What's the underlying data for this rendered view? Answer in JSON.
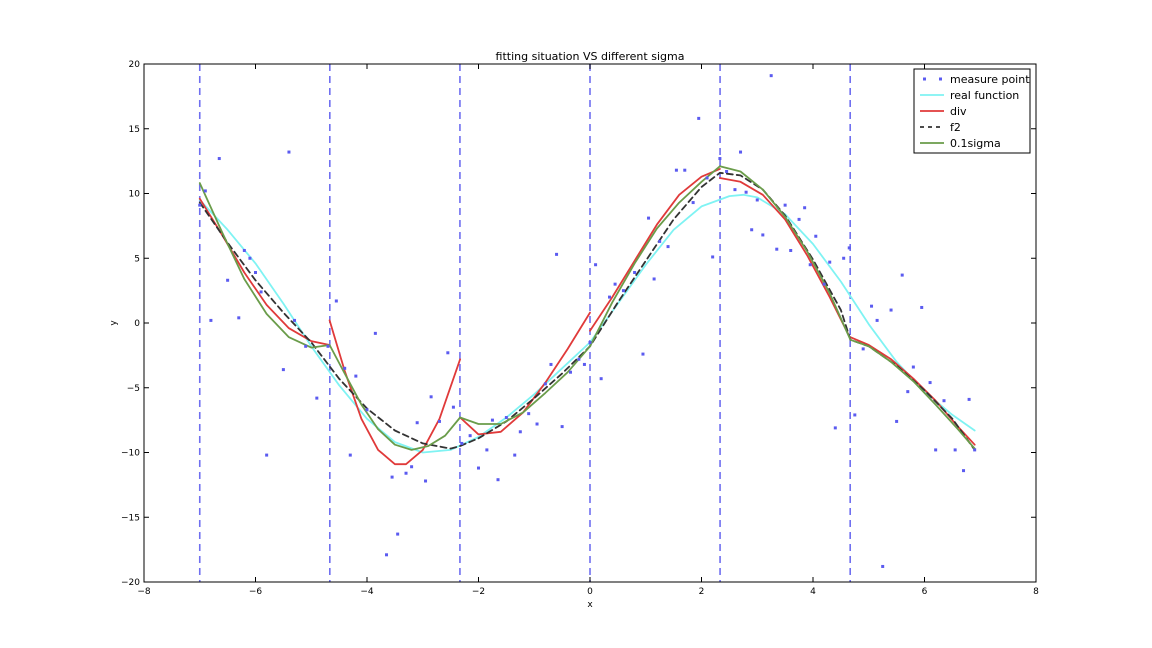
{
  "chart_data": {
    "type": "line",
    "title": "fitting situation VS different sigma",
    "xlabel": "x",
    "ylabel": "y",
    "xlim": [
      -8,
      8
    ],
    "ylim": [
      -20,
      20
    ],
    "x_ticks": [
      -8,
      -6,
      -4,
      -2,
      0,
      2,
      4,
      6,
      8
    ],
    "y_ticks": [
      -20,
      -15,
      -10,
      -5,
      0,
      5,
      10,
      15,
      20
    ],
    "x_tick_labels": [
      "−8",
      "−6",
      "−4",
      "−2",
      "0",
      "2",
      "4",
      "6",
      "8"
    ],
    "y_tick_labels": [
      "−20",
      "−15",
      "−10",
      "−5",
      "0",
      "5",
      "10",
      "15",
      "20"
    ],
    "grid": false,
    "legend_position": "top-right",
    "vertical_lines": {
      "x": [
        -7,
        -4.667,
        -2.333,
        0,
        2.333,
        4.667
      ],
      "color": "#6f6ff0",
      "style": "dashed"
    },
    "series": [
      {
        "name": "measure point",
        "kind": "scatter",
        "color": "#5b5bf0",
        "points": [
          [
            -7.0,
            9.1
          ],
          [
            -6.9,
            10.2
          ],
          [
            -6.8,
            0.2
          ],
          [
            -6.65,
            12.7
          ],
          [
            -6.5,
            3.3
          ],
          [
            -6.3,
            0.4
          ],
          [
            -6.2,
            5.6
          ],
          [
            -6.1,
            5.0
          ],
          [
            -6.0,
            3.9
          ],
          [
            -5.9,
            2.4
          ],
          [
            -5.8,
            -10.2
          ],
          [
            -5.5,
            -3.6
          ],
          [
            -5.4,
            13.2
          ],
          [
            -5.3,
            0.2
          ],
          [
            -5.1,
            -1.8
          ],
          [
            -4.9,
            -5.8
          ],
          [
            -4.7,
            -1.8
          ],
          [
            -4.55,
            1.7
          ],
          [
            -4.4,
            -3.5
          ],
          [
            -4.3,
            -10.2
          ],
          [
            -4.2,
            -4.1
          ],
          [
            -4.0,
            -6.7
          ],
          [
            -3.85,
            -0.8
          ],
          [
            -3.65,
            -17.9
          ],
          [
            -3.55,
            -11.9
          ],
          [
            -3.45,
            -16.3
          ],
          [
            -3.3,
            -11.6
          ],
          [
            -3.2,
            -11.1
          ],
          [
            -3.1,
            -7.7
          ],
          [
            -2.95,
            -12.2
          ],
          [
            -2.85,
            -5.7
          ],
          [
            -2.7,
            -7.6
          ],
          [
            -2.55,
            -2.3
          ],
          [
            -2.45,
            -6.5
          ],
          [
            -2.3,
            -9.3
          ],
          [
            -2.15,
            -8.7
          ],
          [
            -2.0,
            -11.2
          ],
          [
            -1.85,
            -9.8
          ],
          [
            -1.75,
            -7.5
          ],
          [
            -1.65,
            -12.1
          ],
          [
            -1.5,
            -7.3
          ],
          [
            -1.35,
            -10.2
          ],
          [
            -1.25,
            -8.4
          ],
          [
            -1.1,
            -7.0
          ],
          [
            -0.95,
            -7.8
          ],
          [
            -0.8,
            -4.7
          ],
          [
            -0.7,
            -3.2
          ],
          [
            -0.6,
            5.3
          ],
          [
            -0.5,
            -8.0
          ],
          [
            -0.35,
            -3.8
          ],
          [
            -0.2,
            -2.8
          ],
          [
            -0.1,
            -3.2
          ],
          [
            0.0,
            -1.5
          ],
          [
            0.1,
            4.5
          ],
          [
            0.2,
            -4.3
          ],
          [
            0.35,
            2.0
          ],
          [
            0.45,
            3.0
          ],
          [
            0.6,
            2.5
          ],
          [
            0.8,
            3.9
          ],
          [
            0.95,
            -2.4
          ],
          [
            1.05,
            8.1
          ],
          [
            1.15,
            3.4
          ],
          [
            1.25,
            6.3
          ],
          [
            1.4,
            5.9
          ],
          [
            1.55,
            11.8
          ],
          [
            1.7,
            11.8
          ],
          [
            1.85,
            9.3
          ],
          [
            1.95,
            15.8
          ],
          [
            2.1,
            11.2
          ],
          [
            2.2,
            5.1
          ],
          [
            2.33,
            12.7
          ],
          [
            2.45,
            11.7
          ],
          [
            2.6,
            10.3
          ],
          [
            2.7,
            13.2
          ],
          [
            2.8,
            10.1
          ],
          [
            2.9,
            7.2
          ],
          [
            3.0,
            9.5
          ],
          [
            3.1,
            6.8
          ],
          [
            3.25,
            19.1
          ],
          [
            3.35,
            5.7
          ],
          [
            3.5,
            9.1
          ],
          [
            3.6,
            5.6
          ],
          [
            3.75,
            8.0
          ],
          [
            3.85,
            8.9
          ],
          [
            3.95,
            4.5
          ],
          [
            4.05,
            6.7
          ],
          [
            4.2,
            3.0
          ],
          [
            4.3,
            4.7
          ],
          [
            4.4,
            -8.1
          ],
          [
            4.55,
            5.0
          ],
          [
            4.65,
            5.8
          ],
          [
            4.75,
            -7.1
          ],
          [
            4.9,
            -2.0
          ],
          [
            5.05,
            1.3
          ],
          [
            5.15,
            0.2
          ],
          [
            5.25,
            -18.8
          ],
          [
            5.4,
            1.0
          ],
          [
            5.5,
            -7.6
          ],
          [
            5.6,
            3.7
          ],
          [
            5.7,
            -5.3
          ],
          [
            5.8,
            -3.4
          ],
          [
            5.95,
            1.2
          ],
          [
            6.1,
            -4.6
          ],
          [
            6.2,
            -9.8
          ],
          [
            6.35,
            -6.0
          ],
          [
            6.55,
            -9.8
          ],
          [
            6.7,
            -11.4
          ],
          [
            6.8,
            -5.9
          ],
          [
            6.9,
            -9.8
          ]
        ]
      },
      {
        "name": "real function",
        "kind": "line",
        "color": "#7ff3f3",
        "width": 1.8,
        "x": [
          -7.0,
          -6.5,
          -6.0,
          -5.5,
          -5.0,
          -4.5,
          -4.0,
          -3.5,
          -3.0,
          -2.5,
          -2.0,
          -1.5,
          -1.0,
          -0.5,
          0.0,
          0.5,
          1.0,
          1.5,
          2.0,
          2.5,
          2.75,
          3.0,
          3.5,
          4.0,
          4.5,
          5.0,
          5.5,
          6.0,
          6.5,
          6.9
        ],
        "y": [
          9.5,
          7.2,
          4.6,
          1.5,
          -1.8,
          -4.8,
          -7.4,
          -9.2,
          -10.0,
          -9.8,
          -8.8,
          -7.3,
          -5.5,
          -3.5,
          -1.5,
          1.5,
          4.5,
          7.2,
          9.0,
          9.8,
          9.9,
          9.7,
          8.4,
          6.1,
          3.2,
          -0.1,
          -3.0,
          -5.3,
          -7.1,
          -8.3
        ]
      },
      {
        "name": "div",
        "kind": "line",
        "color": "#e03a3a",
        "width": 1.8,
        "segments": [
          {
            "x": [
              -7.0,
              -6.6,
              -6.2,
              -5.8,
              -5.4,
              -5.0,
              -4.67
            ],
            "y": [
              9.6,
              6.8,
              3.9,
              1.4,
              -0.4,
              -1.4,
              -1.7
            ]
          },
          {
            "x": [
              -4.67,
              -4.4,
              -4.1,
              -3.8,
              -3.5,
              -3.3,
              -3.0,
              -2.7,
              -2.33
            ],
            "y": [
              0.2,
              -3.7,
              -7.4,
              -9.8,
              -10.9,
              -10.9,
              -9.8,
              -7.4,
              -2.8
            ]
          },
          {
            "x": [
              -2.33,
              -2.0,
              -1.6,
              -1.2,
              -0.8,
              -0.4,
              0.0
            ],
            "y": [
              -7.3,
              -8.6,
              -8.4,
              -6.9,
              -4.6,
              -2.0,
              0.8
            ]
          },
          {
            "x": [
              0.0,
              0.4,
              0.8,
              1.2,
              1.6,
              2.0,
              2.33
            ],
            "y": [
              -0.6,
              2.0,
              4.8,
              7.6,
              9.9,
              11.3,
              11.9
            ]
          },
          {
            "x": [
              2.33,
              2.7,
              3.1,
              3.5,
              3.9,
              4.3,
              4.67
            ],
            "y": [
              11.2,
              10.9,
              9.9,
              8.0,
              5.2,
              2.0,
              -1.2
            ]
          },
          {
            "x": [
              4.67,
              5.0,
              5.4,
              5.8,
              6.2,
              6.6,
              6.9
            ],
            "y": [
              -1.1,
              -1.7,
              -2.8,
              -4.3,
              -6.0,
              -8.0,
              -9.4
            ]
          }
        ]
      },
      {
        "name": "f2",
        "kind": "line",
        "color": "#333333",
        "width": 1.8,
        "dashed": true,
        "x": [
          -7.0,
          -6.5,
          -6.0,
          -5.5,
          -5.0,
          -4.5,
          -4.0,
          -3.5,
          -3.0,
          -2.5,
          -2.33,
          -2.0,
          -1.5,
          -1.0,
          -0.5,
          0.0,
          0.5,
          1.0,
          1.5,
          2.0,
          2.33,
          2.7,
          3.1,
          3.5,
          4.0,
          4.5,
          4.67,
          5.0,
          5.5,
          6.0,
          6.5,
          6.9
        ],
        "y": [
          9.3,
          6.2,
          3.3,
          0.8,
          -1.5,
          -4.3,
          -6.6,
          -8.3,
          -9.3,
          -9.7,
          -9.5,
          -8.9,
          -7.6,
          -5.8,
          -3.9,
          -1.8,
          1.6,
          4.8,
          8.0,
          10.5,
          11.6,
          11.4,
          10.3,
          8.3,
          4.9,
          1.0,
          -1.3,
          -1.8,
          -3.3,
          -5.2,
          -7.4,
          -9.8
        ]
      },
      {
        "name": "0.1sigma",
        "kind": "line",
        "color": "#6a9c4a",
        "width": 1.8,
        "segments": [
          {
            "x": [
              -7.0,
              -6.6,
              -6.2,
              -5.8,
              -5.4,
              -5.0,
              -4.67
            ],
            "y": [
              10.8,
              7.0,
              3.4,
              0.7,
              -1.1,
              -1.9,
              -1.7
            ]
          },
          {
            "x": [
              -4.67,
              -4.4,
              -4.1,
              -3.8,
              -3.5,
              -3.2,
              -2.9,
              -2.6,
              -2.33
            ],
            "y": [
              -1.7,
              -3.9,
              -6.3,
              -8.2,
              -9.4,
              -9.8,
              -9.5,
              -8.7,
              -7.3
            ]
          },
          {
            "x": [
              -2.33,
              -2.0,
              -1.6,
              -1.2,
              -0.8,
              -0.4,
              0.0
            ],
            "y": [
              -7.3,
              -7.8,
              -7.8,
              -6.9,
              -5.4,
              -3.8,
              -1.8
            ]
          },
          {
            "x": [
              0.0,
              0.4,
              0.8,
              1.2,
              1.6,
              2.0,
              2.33
            ],
            "y": [
              -1.8,
              1.6,
              4.6,
              7.3,
              9.3,
              10.9,
              12.1
            ]
          },
          {
            "x": [
              2.33,
              2.7,
              3.1,
              3.5,
              3.9,
              4.3,
              4.67
            ],
            "y": [
              12.1,
              11.7,
              10.3,
              8.2,
              5.5,
              2.3,
              -1.3
            ]
          },
          {
            "x": [
              4.67,
              5.0,
              5.4,
              5.8,
              6.2,
              6.6,
              6.9
            ],
            "y": [
              -1.3,
              -1.8,
              -3.0,
              -4.5,
              -6.3,
              -8.2,
              -9.7
            ]
          }
        ]
      }
    ]
  }
}
